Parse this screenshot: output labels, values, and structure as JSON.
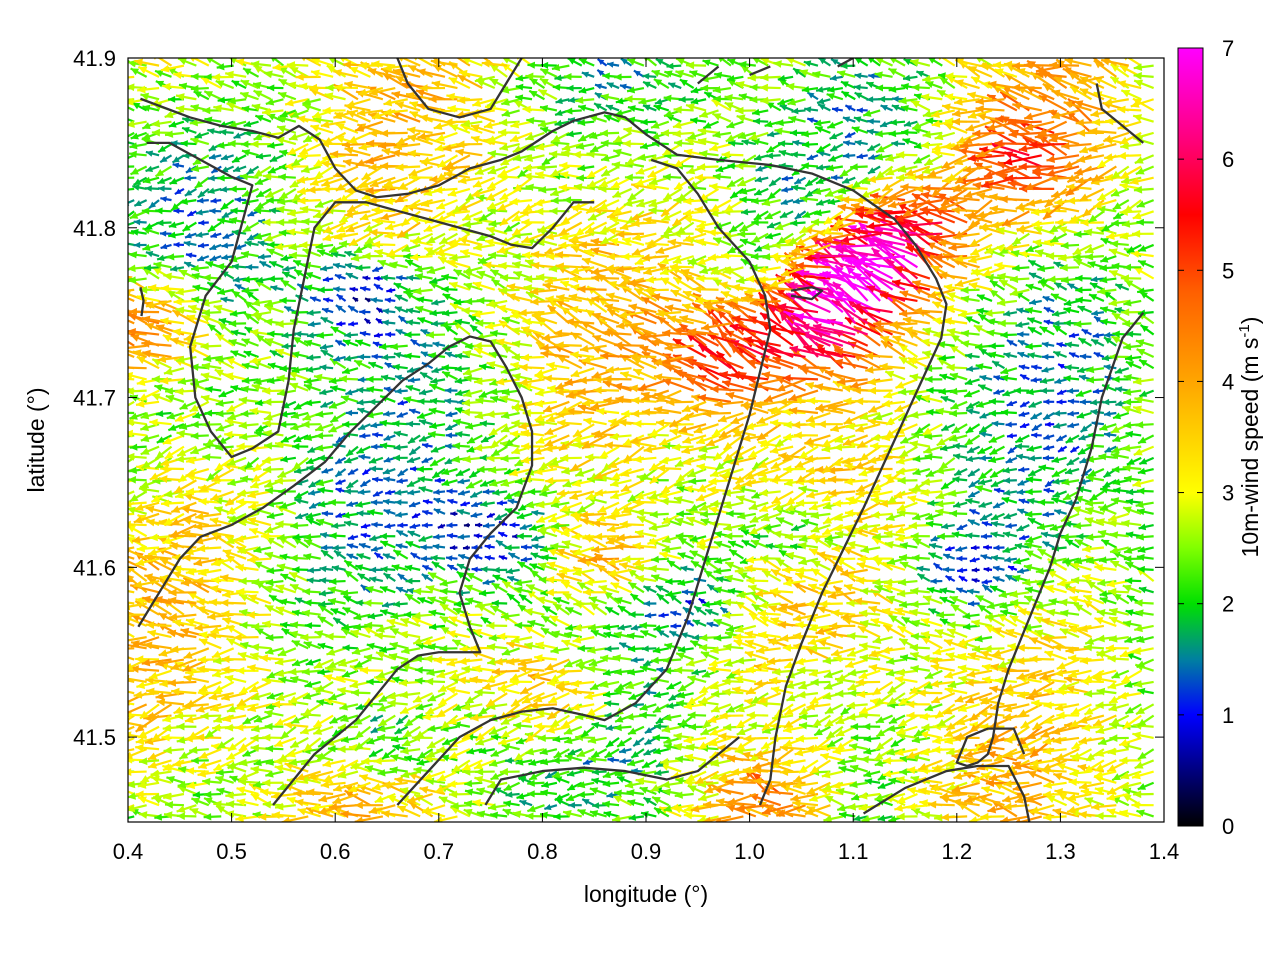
{
  "chart_data": {
    "type": "vector-field",
    "title": "",
    "xlabel": "longitude (°)",
    "ylabel": "latitude (°)",
    "xlim": [
      0.4,
      1.4
    ],
    "ylim": [
      41.45,
      41.9
    ],
    "xticks": [
      "0.4",
      "0.5",
      "0.6",
      "0.7",
      "0.8",
      "0.9",
      "1.0",
      "1.1",
      "1.2",
      "1.3",
      "1.4"
    ],
    "yticks": [
      "41.5",
      "41.6",
      "41.7",
      "41.8",
      "41.9"
    ],
    "grid": false,
    "colorbar": {
      "label_main": "10m-wind speed (m s",
      "label_sup": "-1",
      "label_end": ")",
      "range": [
        0,
        7
      ],
      "ticks": [
        "0",
        "1",
        "2",
        "3",
        "4",
        "5",
        "6",
        "7"
      ],
      "colormap": [
        {
          "value": 0,
          "color": "#000000"
        },
        {
          "value": 0.5,
          "color": "#00007f"
        },
        {
          "value": 1,
          "color": "#0000ff"
        },
        {
          "value": 1.5,
          "color": "#0080a0"
        },
        {
          "value": 2,
          "color": "#00e000"
        },
        {
          "value": 2.5,
          "color": "#80ff00"
        },
        {
          "value": 3,
          "color": "#ffff00"
        },
        {
          "value": 4,
          "color": "#ffa500"
        },
        {
          "value": 4.8,
          "color": "#ff6000"
        },
        {
          "value": 5.5,
          "color": "#ff0000"
        },
        {
          "value": 6.2,
          "color": "#ff0080"
        },
        {
          "value": 7,
          "color": "#ff00ff"
        }
      ]
    },
    "vector_field": {
      "grid_step_deg": 0.012,
      "mean_direction": "from east (arrows point west)",
      "speed_range_m_s": [
        0,
        7
      ],
      "high_speed_zones": [
        {
          "lon": 1.12,
          "lat": 41.77,
          "speed": 6.3
        },
        {
          "lon": 1.08,
          "lat": 41.74,
          "speed": 5.8
        },
        {
          "lon": 1.16,
          "lat": 41.8,
          "speed": 5.6
        },
        {
          "lon": 0.42,
          "lat": 41.74,
          "speed": 5.4
        },
        {
          "lon": 0.99,
          "lat": 41.72,
          "speed": 5.0
        },
        {
          "lon": 1.03,
          "lat": 41.46,
          "speed": 5.0
        },
        {
          "lon": 0.82,
          "lat": 41.53,
          "speed": 4.6
        },
        {
          "lon": 1.28,
          "lat": 41.84,
          "speed": 4.6
        },
        {
          "lon": 0.88,
          "lat": 41.6,
          "speed": 4.4
        }
      ],
      "low_speed_zones": [
        {
          "lon": 0.63,
          "lat": 41.76,
          "speed": 0.7
        },
        {
          "lon": 0.76,
          "lat": 41.62,
          "speed": 1.0
        },
        {
          "lon": 0.95,
          "lat": 41.58,
          "speed": 1.1
        },
        {
          "lon": 1.05,
          "lat": 41.62,
          "speed": 1.2
        },
        {
          "lon": 0.66,
          "lat": 41.5,
          "speed": 1.2
        },
        {
          "lon": 1.22,
          "lat": 41.6,
          "speed": 1.3
        }
      ]
    },
    "contour_lines": [
      [
        [
          0.412,
          41.876
        ],
        [
          0.46,
          41.865
        ],
        [
          0.49,
          41.86
        ],
        [
          0.52,
          41.857
        ],
        [
          0.545,
          41.853
        ],
        [
          0.565,
          41.86
        ],
        [
          0.585,
          41.852
        ],
        [
          0.6,
          41.835
        ],
        [
          0.62,
          41.822
        ],
        [
          0.64,
          41.818
        ],
        [
          0.67,
          41.82
        ],
        [
          0.7,
          41.825
        ],
        [
          0.73,
          41.835
        ],
        [
          0.76,
          41.84
        ],
        [
          0.78,
          41.845
        ],
        [
          0.81,
          41.857
        ],
        [
          0.83,
          41.863
        ],
        [
          0.86,
          41.868
        ],
        [
          0.88,
          41.865
        ],
        [
          0.9,
          41.855
        ],
        [
          0.93,
          41.843
        ],
        [
          0.97,
          41.84
        ],
        [
          1.02,
          41.837
        ],
        [
          1.06,
          41.832
        ],
        [
          1.1,
          41.822
        ],
        [
          1.14,
          41.805
        ],
        [
          1.16,
          41.79
        ],
        [
          1.18,
          41.77
        ],
        [
          1.19,
          41.755
        ],
        [
          1.185,
          41.735
        ],
        [
          1.17,
          41.715
        ],
        [
          1.155,
          41.695
        ],
        [
          1.14,
          41.675
        ],
        [
          1.125,
          41.655
        ],
        [
          1.11,
          41.635
        ],
        [
          1.09,
          41.61
        ],
        [
          1.07,
          41.585
        ],
        [
          1.05,
          41.555
        ],
        [
          1.035,
          41.53
        ],
        [
          1.025,
          41.5
        ],
        [
          1.02,
          41.475
        ],
        [
          1.01,
          41.46
        ]
      ],
      [
        [
          0.418,
          41.85
        ],
        [
          0.44,
          41.85
        ],
        [
          0.47,
          41.84
        ],
        [
          0.5,
          41.83
        ],
        [
          0.52,
          41.825
        ],
        [
          0.5,
          41.78
        ],
        [
          0.475,
          41.76
        ],
        [
          0.46,
          41.73
        ],
        [
          0.465,
          41.7
        ],
        [
          0.48,
          41.68
        ],
        [
          0.5,
          41.665
        ],
        [
          0.52,
          41.67
        ],
        [
          0.545,
          41.68
        ],
        [
          0.555,
          41.71
        ],
        [
          0.56,
          41.74
        ],
        [
          0.57,
          41.77
        ],
        [
          0.58,
          41.8
        ],
        [
          0.6,
          41.815
        ],
        [
          0.63,
          41.815
        ],
        [
          0.66,
          41.81
        ],
        [
          0.69,
          41.805
        ],
        [
          0.72,
          41.8
        ],
        [
          0.75,
          41.795
        ],
        [
          0.77,
          41.79
        ],
        [
          0.79,
          41.788
        ],
        [
          0.81,
          41.8
        ],
        [
          0.83,
          41.815
        ],
        [
          0.85,
          41.815
        ]
      ],
      [
        [
          0.66,
          41.9
        ],
        [
          0.67,
          41.885
        ],
        [
          0.69,
          41.87
        ],
        [
          0.72,
          41.865
        ],
        [
          0.75,
          41.87
        ],
        [
          0.765,
          41.885
        ],
        [
          0.78,
          41.9
        ]
      ],
      [
        [
          0.412,
          41.765
        ],
        [
          0.415,
          41.757
        ],
        [
          0.413,
          41.748
        ]
      ],
      [
        [
          0.41,
          41.565
        ],
        [
          0.43,
          41.585
        ],
        [
          0.45,
          41.605
        ],
        [
          0.47,
          41.618
        ],
        [
          0.5,
          41.625
        ],
        [
          0.53,
          41.635
        ],
        [
          0.56,
          41.648
        ],
        [
          0.59,
          41.662
        ],
        [
          0.615,
          41.68
        ],
        [
          0.64,
          41.695
        ],
        [
          0.665,
          41.71
        ],
        [
          0.69,
          41.72
        ],
        [
          0.71,
          41.73
        ],
        [
          0.73,
          41.736
        ],
        [
          0.75,
          41.733
        ],
        [
          0.765,
          41.718
        ],
        [
          0.78,
          41.7
        ],
        [
          0.79,
          41.68
        ],
        [
          0.79,
          41.66
        ],
        [
          0.775,
          41.635
        ],
        [
          0.75,
          41.62
        ],
        [
          0.73,
          41.605
        ],
        [
          0.72,
          41.585
        ],
        [
          0.73,
          41.565
        ],
        [
          0.74,
          41.55
        ],
        [
          0.72,
          41.55
        ],
        [
          0.7,
          41.55
        ],
        [
          0.68,
          41.548
        ],
        [
          0.66,
          41.54
        ],
        [
          0.64,
          41.525
        ],
        [
          0.62,
          41.51
        ],
        [
          0.6,
          41.5
        ],
        [
          0.58,
          41.49
        ],
        [
          0.56,
          41.475
        ],
        [
          0.54,
          41.46
        ]
      ],
      [
        [
          0.66,
          41.46
        ],
        [
          0.69,
          41.48
        ],
        [
          0.72,
          41.5
        ],
        [
          0.75,
          41.51
        ],
        [
          0.78,
          41.515
        ],
        [
          0.81,
          41.517
        ],
        [
          0.84,
          41.513
        ],
        [
          0.86,
          41.51
        ],
        [
          0.89,
          41.52
        ],
        [
          0.92,
          41.54
        ],
        [
          0.94,
          41.57
        ],
        [
          0.955,
          41.6
        ],
        [
          0.97,
          41.63
        ],
        [
          0.985,
          41.66
        ],
        [
          1.0,
          41.69
        ],
        [
          1.01,
          41.715
        ],
        [
          1.02,
          41.74
        ],
        [
          1.015,
          41.76
        ],
        [
          1.0,
          41.78
        ],
        [
          0.97,
          41.8
        ],
        [
          0.95,
          41.82
        ],
        [
          0.93,
          41.835
        ],
        [
          0.905,
          41.84
        ]
      ],
      [
        [
          0.745,
          41.46
        ],
        [
          0.76,
          41.475
        ],
        [
          0.8,
          41.48
        ],
        [
          0.84,
          41.482
        ],
        [
          0.88,
          41.48
        ],
        [
          0.92,
          41.475
        ],
        [
          0.95,
          41.48
        ],
        [
          0.97,
          41.49
        ],
        [
          0.99,
          41.5
        ]
      ],
      [
        [
          1.38,
          41.75
        ],
        [
          1.36,
          41.735
        ],
        [
          1.34,
          41.7
        ],
        [
          1.33,
          41.67
        ],
        [
          1.315,
          41.64
        ],
        [
          1.3,
          41.62
        ],
        [
          1.29,
          41.6
        ],
        [
          1.27,
          41.57
        ],
        [
          1.25,
          41.54
        ],
        [
          1.24,
          41.52
        ],
        [
          1.235,
          41.5
        ],
        [
          1.23,
          41.49
        ],
        [
          1.22,
          41.485
        ],
        [
          1.21,
          41.483
        ],
        [
          1.2,
          41.485
        ],
        [
          1.21,
          41.5
        ],
        [
          1.23,
          41.505
        ],
        [
          1.255,
          41.505
        ],
        [
          1.265,
          41.49
        ]
      ],
      [
        [
          1.11,
          41.455
        ],
        [
          1.15,
          41.47
        ],
        [
          1.19,
          41.48
        ],
        [
          1.22,
          41.483
        ],
        [
          1.25,
          41.483
        ],
        [
          1.265,
          41.465
        ],
        [
          1.27,
          41.45
        ]
      ],
      [
        [
          1.335,
          41.885
        ],
        [
          1.34,
          41.87
        ],
        [
          1.36,
          41.86
        ],
        [
          1.38,
          41.85
        ]
      ],
      [
        [
          1.04,
          41.763
        ],
        [
          1.06,
          41.765
        ],
        [
          1.07,
          41.763
        ],
        [
          1.06,
          41.758
        ],
        [
          1.04,
          41.76
        ]
      ],
      [
        [
          1.085,
          41.895
        ],
        [
          1.1,
          41.9
        ]
      ],
      [
        [
          0.95,
          41.885
        ],
        [
          0.97,
          41.895
        ]
      ],
      [
        [
          1.0,
          41.89
        ],
        [
          1.02,
          41.895
        ]
      ]
    ]
  }
}
